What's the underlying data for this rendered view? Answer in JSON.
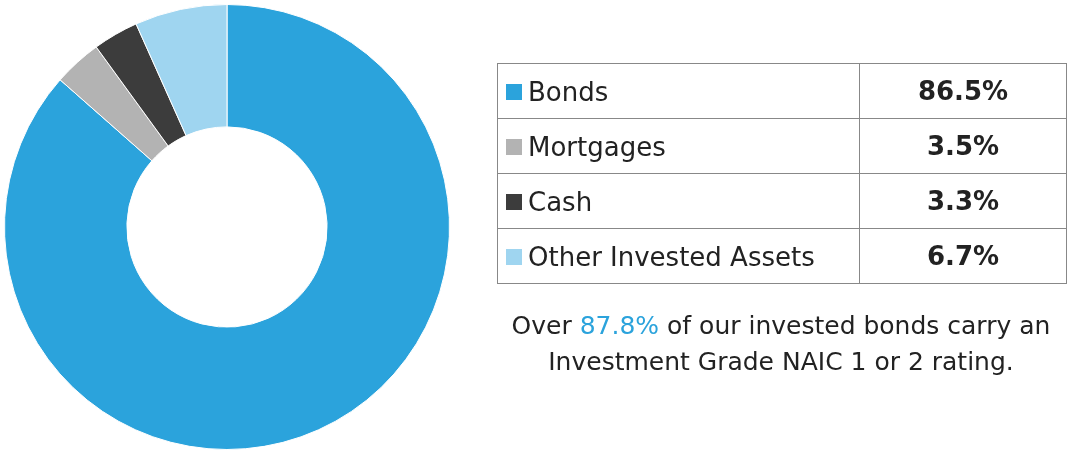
{
  "chart_data": {
    "type": "donut",
    "categories": [
      "Bonds",
      "Mortgages",
      "Cash",
      "Other Invested Assets"
    ],
    "values": [
      86.5,
      3.5,
      3.3,
      6.7
    ],
    "colors": [
      "#2ba3dc",
      "#b3b3b3",
      "#3c3c3c",
      "#9fd5f0"
    ],
    "value_labels": [
      "86.5%",
      "3.5%",
      "3.3%",
      "6.7%"
    ],
    "legend": "right",
    "annotations": [
      "Over 87.8% of our invested bonds carry an Investment Grade NAIC 1 or 2 rating."
    ]
  }
}
